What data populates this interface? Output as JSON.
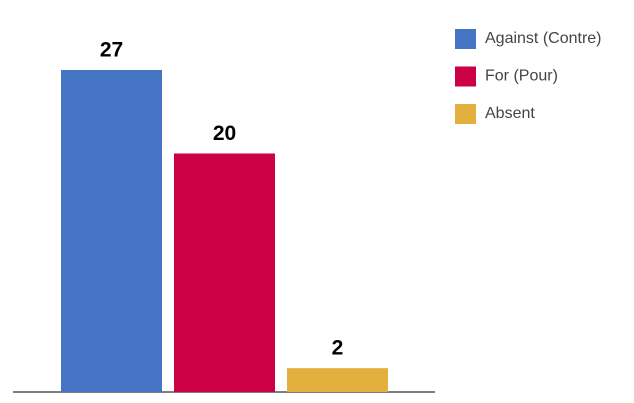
{
  "chart_data": {
    "type": "bar",
    "categories": [
      "Against (Contre)",
      "For (Pour)",
      "Absent"
    ],
    "values": [
      27,
      20,
      2
    ],
    "colors": [
      "#4674c4",
      "#cc0044",
      "#e3b040"
    ],
    "ylim": [
      0,
      27
    ],
    "legend": "right"
  }
}
